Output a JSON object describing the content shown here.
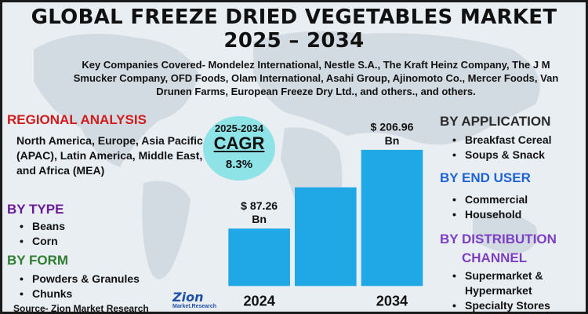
{
  "title_line1": "GLOBAL FREEZE DRIED VEGETABLES MARKET",
  "title_line2": "2025 – 2034",
  "companies": "Key Companies Covered- Mondelez International, Nestle S.A., The Kraft Heinz Company, The J M Smucker Company, OFD Foods, Olam International, Asahi Group, Ajinomoto Co., Mercer Foods, Van Drunen Farms, European Freeze Dry Ltd., and others., and others.",
  "regional": {
    "heading": "REGIONAL ANALYSIS",
    "text": "North America, Europe, Asia Pacific (APAC), Latin America, Middle East, and Africa (MEA)"
  },
  "by_type": {
    "heading": "BY TYPE",
    "items": [
      "Beans",
      "Corn"
    ]
  },
  "by_form": {
    "heading": "BY FORM",
    "items": [
      "Powders & Granules",
      "Chunks"
    ]
  },
  "by_application": {
    "heading": "BY APPLICATION",
    "items": [
      "Breakfast Cereal",
      "Soups & Snack"
    ]
  },
  "by_end_user": {
    "heading": "BY END USER",
    "items": [
      "Commercial",
      "Household"
    ]
  },
  "by_distribution": {
    "heading_line1": "BY DISTRIBUTION",
    "heading_line2": "CHANNEL",
    "items": [
      "Supermarket & Hypermarket",
      "Specialty Stores"
    ]
  },
  "cagr": {
    "years": "2025-2034",
    "label": "CAGR",
    "value": "8.3%"
  },
  "source": "Source- Zion Market Research",
  "logo": {
    "name": "Zion",
    "sub": "Market.Research"
  },
  "colors": {
    "bar": "#1fa7e6",
    "cagr_bubble": "#8ee3e6",
    "regional": "#d01c1c",
    "type": "#6a1b9a",
    "form": "#2e7d32",
    "end_user": "#1e63d6",
    "distribution": "#7c3fc4"
  },
  "chart_data": {
    "type": "bar",
    "categories": [
      "2024",
      "",
      "2034"
    ],
    "values": [
      87.26,
      150,
      206.96
    ],
    "data_labels": [
      "$ 87.26 Bn",
      "",
      "$ 206.96 Bn"
    ],
    "ylim": [
      0,
      206.96
    ]
  }
}
